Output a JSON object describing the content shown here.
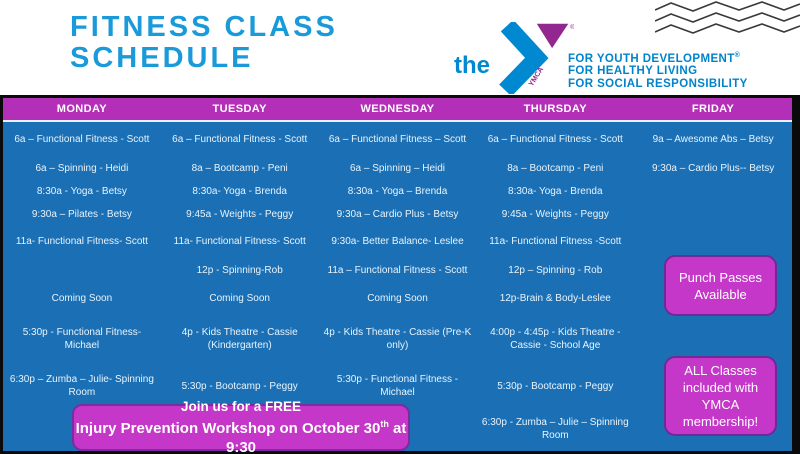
{
  "header": {
    "title_line1": "FITNESS CLASS",
    "title_line2": "SCHEDULE",
    "logo": {
      "the": "the",
      "ymca_vertical": "YMCA",
      "registered": "®",
      "taglines": [
        "FOR YOUTH DEVELOPMENT",
        "FOR HEALTHY LIVING",
        "FOR SOCIAL RESPONSIBILITY"
      ],
      "tagline_registered": "®"
    }
  },
  "schedule": {
    "days": [
      "MONDAY",
      "TUESDAY",
      "WEDNESDAY",
      "THURSDAY",
      "FRIDAY"
    ],
    "rows": [
      [
        "6a – Functional Fitness - Scott",
        "6a – Functional Fitness - Scott",
        "6a – Functional Fitness – Scott",
        "6a – Functional Fitness - Scott",
        "9a – Awesome Abs – Betsy"
      ],
      [
        "6a – Spinning - Heidi",
        "8a – Bootcamp - Peni",
        "6a – Spinning – Heidi",
        "8a – Bootcamp - Peni",
        "9:30a – Cardio Plus-- Betsy"
      ],
      [
        "8:30a - Yoga - Betsy",
        "8:30a- Yoga - Brenda",
        "8:30a - Yoga – Brenda",
        "8:30a- Yoga - Brenda",
        ""
      ],
      [
        "9:30a – Pilates - Betsy",
        "9:45a - Weights - Peggy",
        "9:30a – Cardio Plus - Betsy",
        "9:45a - Weights - Peggy",
        ""
      ],
      [
        "11a- Functional Fitness- Scott",
        "11a- Functional Fitness- Scott",
        "9:30a- Better Balance- Leslee",
        "11a- Functional Fitness -Scott",
        ""
      ],
      [
        "",
        "12p - Spinning-Rob",
        "11a – Functional Fitness - Scott",
        "12p – Spinning - Rob",
        ""
      ],
      [
        "Coming Soon",
        "Coming Soon",
        "Coming Soon",
        "12p-Brain & Body-Leslee",
        ""
      ],
      [
        "5:30p - Functional Fitness- Michael",
        "4p - Kids Theatre - Cassie (Kindergarten)",
        "4p - Kids Theatre - Cassie (Pre-K only)",
        "4:00p - 4:45p - Kids Theatre - Cassie - School Age",
        ""
      ],
      [
        "6:30p – Zumba – Julie- Spinning Room",
        "5:30p - Bootcamp - Peggy",
        "5:30p - Functional Fitness - Michael",
        "5:30p - Bootcamp - Peggy",
        ""
      ],
      [
        "",
        "",
        "",
        "6:30p - Zumba – Julie – Spinning Room",
        ""
      ]
    ]
  },
  "callouts": {
    "punch": "Punch Passes Available",
    "membership": "ALL Classes included with YMCA membership!"
  },
  "banner": {
    "line1": "Join us for a FREE",
    "line2_prefix": "Injury Prevention Workshop on October 30",
    "line2_super": "th",
    "line2_suffix": " at 9:30"
  },
  "colors": {
    "title_blue": "#1a9ad8",
    "ymca_blue": "#0089d0",
    "ymca_purple": "#92278f",
    "day_bar_magenta": "#b32fb7",
    "body_blue": "#1b70b5",
    "callout_magenta": "#c437c8",
    "callout_border_purple": "#6e2a96",
    "schedule_text": "#e8f3fc"
  }
}
